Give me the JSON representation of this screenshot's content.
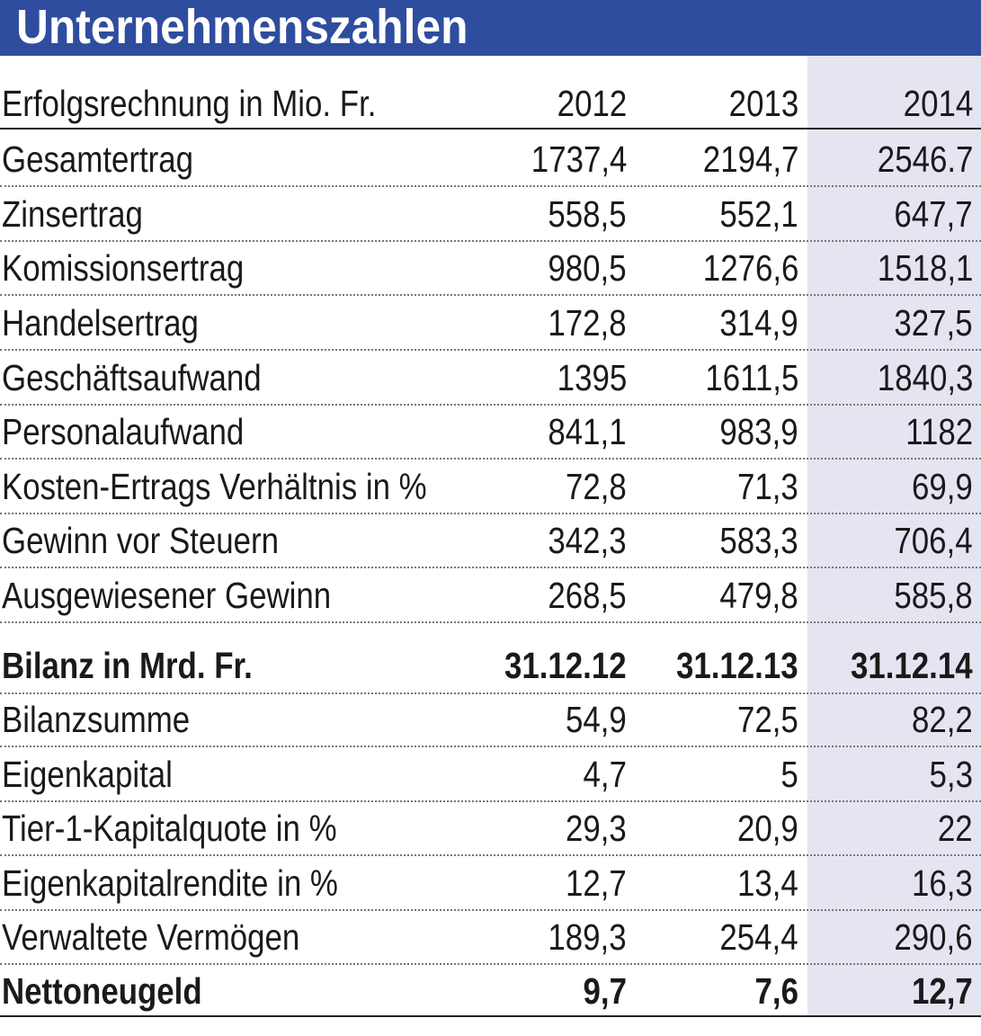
{
  "header": {
    "title": "Unternehmenszahlen"
  },
  "table": {
    "sections": [
      {
        "header": [
          "Erfolgsrechnung in Mio. Fr.",
          "2012",
          "2013",
          "2014"
        ],
        "rows": [
          [
            "Gesamtertrag",
            "1737,4",
            "2194,7",
            "2546.7"
          ],
          [
            "Zinsertrag",
            "558,5",
            "552,1",
            "647,7"
          ],
          [
            "Komissionsertrag",
            "980,5",
            "1276,6",
            "1518,1"
          ],
          [
            "Handelsertrag",
            "172,8",
            "314,9",
            "327,5"
          ],
          [
            "Geschäftsaufwand",
            "1395",
            "1611,5",
            "1840,3"
          ],
          [
            "Personalaufwand",
            "841,1",
            "983,9",
            "1182"
          ],
          [
            "Kosten-Ertrags Verhältnis in %",
            "72,8",
            "71,3",
            "69,9"
          ],
          [
            "Gewinn vor Steuern",
            "342,3",
            "583,3",
            "706,4"
          ],
          [
            "Ausgewiesener Gewinn",
            "268,5",
            "479,8",
            "585,8"
          ]
        ]
      },
      {
        "header": [
          "Bilanz in Mrd. Fr.",
          "31.12.12",
          "31.12.13",
          "31.12.14"
        ],
        "rows": [
          [
            "Bilanzsumme",
            "54,9",
            "72,5",
            "82,2"
          ],
          [
            "Eigenkapital",
            "4,7",
            "5",
            "5,3"
          ],
          [
            "Tier-1-Kapitalquote in %",
            "29,3",
            "20,9",
            "22"
          ],
          [
            "Eigenkapitalrendite in %",
            "12,7",
            "13,4",
            "16,3"
          ],
          [
            "Verwaltete Vermögen",
            "189,3",
            "254,4",
            "290,6"
          ],
          [
            "Nettoneugeld",
            "9,7",
            "7,6",
            "12,7"
          ]
        ]
      }
    ]
  }
}
